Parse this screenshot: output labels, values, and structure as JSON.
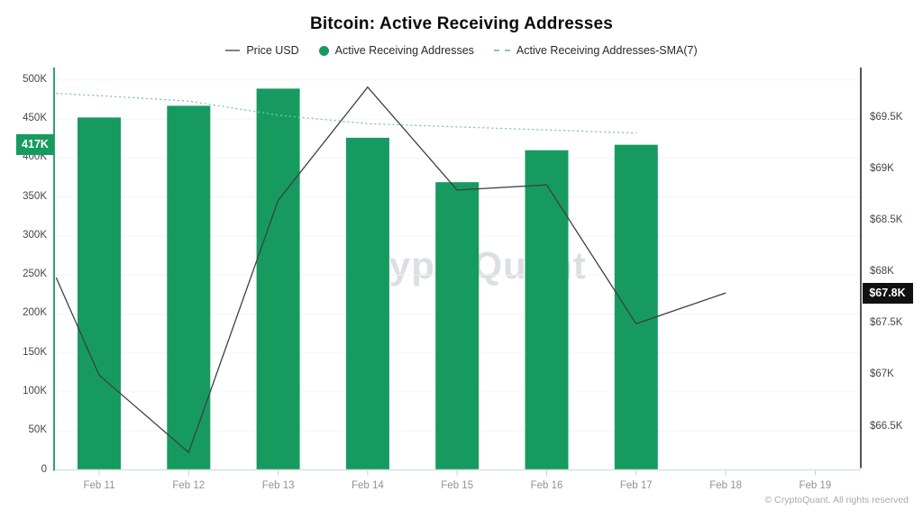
{
  "title": "Bitcoin: Active Receiving Addresses",
  "legend": [
    {
      "label": "Price USD",
      "type": "line",
      "color": "#7f7f7f"
    },
    {
      "label": "Active Receiving Addresses",
      "type": "dot",
      "color": "#179a60"
    },
    {
      "label": "Active Receiving Addresses-SMA(7)",
      "type": "dashed",
      "color": "#8fc6ad"
    }
  ],
  "watermark": "CryptoQuant",
  "copyright": "© CryptoQuant. All rights reserved",
  "chart_data": {
    "type": "bar",
    "title": "Bitcoin: Active Receiving Addresses",
    "categories": [
      "Feb 11",
      "Feb 12",
      "Feb 13",
      "Feb 14",
      "Feb 15",
      "Feb 16",
      "Feb 17",
      "Feb 18",
      "Feb 19"
    ],
    "series": [
      {
        "name": "Active Receiving Addresses",
        "type": "bar",
        "axis": "left",
        "color": "#179a60",
        "values": [
          452000,
          467000,
          489000,
          426000,
          369000,
          410000,
          417000,
          null,
          null
        ]
      },
      {
        "name": "Price USD",
        "type": "line",
        "axis": "right",
        "color": "#3d4043",
        "points": [
          {
            "x": -0.48,
            "y": 67.95
          },
          {
            "x": 0,
            "y": 67.0
          },
          {
            "x": 1,
            "y": 66.25
          },
          {
            "x": 2,
            "y": 68.7
          },
          {
            "x": 3,
            "y": 69.8
          },
          {
            "x": 4,
            "y": 68.8
          },
          {
            "x": 5,
            "y": 68.85
          },
          {
            "x": 6,
            "y": 67.5
          },
          {
            "x": 7,
            "y": 67.8
          }
        ]
      },
      {
        "name": "Active Receiving Addresses-SMA(7)",
        "type": "line-dashed",
        "axis": "left",
        "color": "#79c4a0",
        "points": [
          {
            "x": -0.48,
            "y": 483000
          },
          {
            "x": 0,
            "y": 480000
          },
          {
            "x": 1,
            "y": 473000
          },
          {
            "x": 2,
            "y": 455000
          },
          {
            "x": 3,
            "y": 444000
          },
          {
            "x": 4,
            "y": 440000
          },
          {
            "x": 5,
            "y": 436000
          },
          {
            "x": 6,
            "y": 432000
          }
        ]
      }
    ],
    "left_axis": {
      "range": [
        0,
        516000
      ],
      "ticks": [
        {
          "v": 0,
          "label": "0"
        },
        {
          "v": 50000,
          "label": "50K"
        },
        {
          "v": 100000,
          "label": "100K"
        },
        {
          "v": 150000,
          "label": "150K"
        },
        {
          "v": 200000,
          "label": "200K"
        },
        {
          "v": 250000,
          "label": "250K"
        },
        {
          "v": 300000,
          "label": "300K"
        },
        {
          "v": 350000,
          "label": "350K"
        },
        {
          "v": 400000,
          "label": "400K"
        },
        {
          "v": 450000,
          "label": "450K"
        },
        {
          "v": 500000,
          "label": "500K"
        }
      ]
    },
    "right_axis": {
      "range": [
        66.08,
        69.99
      ],
      "ticks": [
        {
          "v": 66.5,
          "label": "$66.5K"
        },
        {
          "v": 67,
          "label": "$67K"
        },
        {
          "v": 67.5,
          "label": "$67.5K"
        },
        {
          "v": 68,
          "label": "$68K"
        },
        {
          "v": 68.5,
          "label": "$68.5K"
        },
        {
          "v": 69,
          "label": "$69K"
        },
        {
          "v": 69.5,
          "label": "$69.5K"
        }
      ]
    },
    "annotations": [
      {
        "label": "417K",
        "axis": "left",
        "value": 417500,
        "bg": "#179a60",
        "side": "left"
      },
      {
        "label": "$67.8K",
        "axis": "right",
        "value": 67.8,
        "bg": "#111111",
        "side": "right"
      }
    ],
    "legend_position": "top",
    "grid": true
  }
}
